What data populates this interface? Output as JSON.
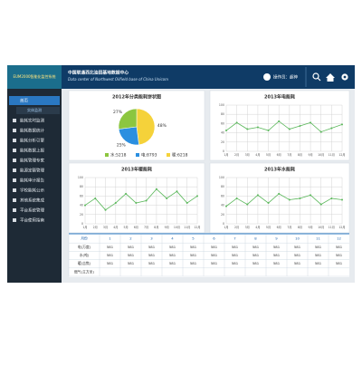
{
  "header": {
    "brand": "EUM2000智能化监控系统",
    "title": "中国联通西北油田基地数据中心",
    "subtitle": "Data center of Northwest Oilfield base of China Unicom",
    "user": "操作员：超神"
  },
  "sidebar": {
    "active": "首页",
    "sub": "实体监测",
    "items": [
      "能耗实时监测",
      "能耗数据统计",
      "能耗分析引擎",
      "能耗数据上报",
      "能耗管理专家",
      "能源定额管理",
      "能耗审计报告",
      "学校能耗公示",
      "其他系统集成",
      "平台系统管理",
      "平台使用指南"
    ]
  },
  "chart_data": [
    {
      "type": "pie",
      "title": "2012年分类能耗饼状图",
      "categories": [
        "水:5218",
        "电:8793",
        "暖:6218"
      ],
      "values": [
        27,
        25,
        48
      ],
      "value_labels": [
        "27%",
        "25%",
        "48%"
      ],
      "colors": [
        "#8cc63f",
        "#2b8fe0",
        "#f5d23a"
      ]
    },
    {
      "type": "line",
      "title": "2013年电能耗",
      "categories": [
        "1月",
        "2月",
        "3月",
        "4月",
        "5月",
        "6月",
        "7月",
        "8月",
        "9月",
        "10月",
        "11月",
        "12月"
      ],
      "values": [
        45,
        62,
        48,
        52,
        45,
        65,
        48,
        55,
        62,
        42,
        50,
        58
      ],
      "color": "#5cb85c",
      "ylim": [
        0,
        100
      ],
      "yticks": [
        0,
        20,
        40,
        60,
        80,
        100
      ],
      "grid": true
    },
    {
      "type": "line",
      "title": "2013年暖能耗",
      "categories": [
        "1月",
        "2月",
        "3月",
        "4月",
        "5月",
        "6月",
        "7月",
        "8月",
        "9月",
        "10月",
        "11月",
        "12月"
      ],
      "values": [
        40,
        55,
        30,
        45,
        65,
        45,
        50,
        75,
        55,
        70,
        45,
        60
      ],
      "color": "#5cb85c",
      "ylim": [
        0,
        100
      ],
      "yticks": [
        0,
        20,
        40,
        60,
        80,
        100
      ],
      "grid": true
    },
    {
      "type": "line",
      "title": "2013年水能耗",
      "categories": [
        "1月",
        "2月",
        "3月",
        "4月",
        "5月",
        "6月",
        "7月",
        "8月",
        "9月",
        "10月",
        "11月",
        "12月"
      ],
      "values": [
        38,
        55,
        42,
        62,
        45,
        65,
        52,
        55,
        62,
        42,
        55,
        52
      ],
      "color": "#5cb85c",
      "ylim": [
        0,
        100
      ],
      "yticks": [
        0,
        20,
        40,
        60,
        80,
        100
      ],
      "grid": true
    }
  ],
  "table": {
    "header": [
      "月份",
      1,
      2,
      3,
      4,
      5,
      6,
      7,
      8,
      9,
      10,
      11,
      12
    ],
    "rows": [
      [
        "电(万度)",
        581,
        581,
        581,
        581,
        581,
        581,
        581,
        581,
        581,
        581,
        581,
        581
      ],
      [
        "水(吨)",
        581,
        581,
        581,
        581,
        581,
        581,
        581,
        581,
        581,
        581,
        581,
        581
      ],
      [
        "暖(吉焦)",
        581,
        581,
        581,
        581,
        581,
        581,
        581,
        581,
        581,
        581,
        581,
        581
      ],
      [
        "燃气(立方米)"
      ]
    ]
  }
}
